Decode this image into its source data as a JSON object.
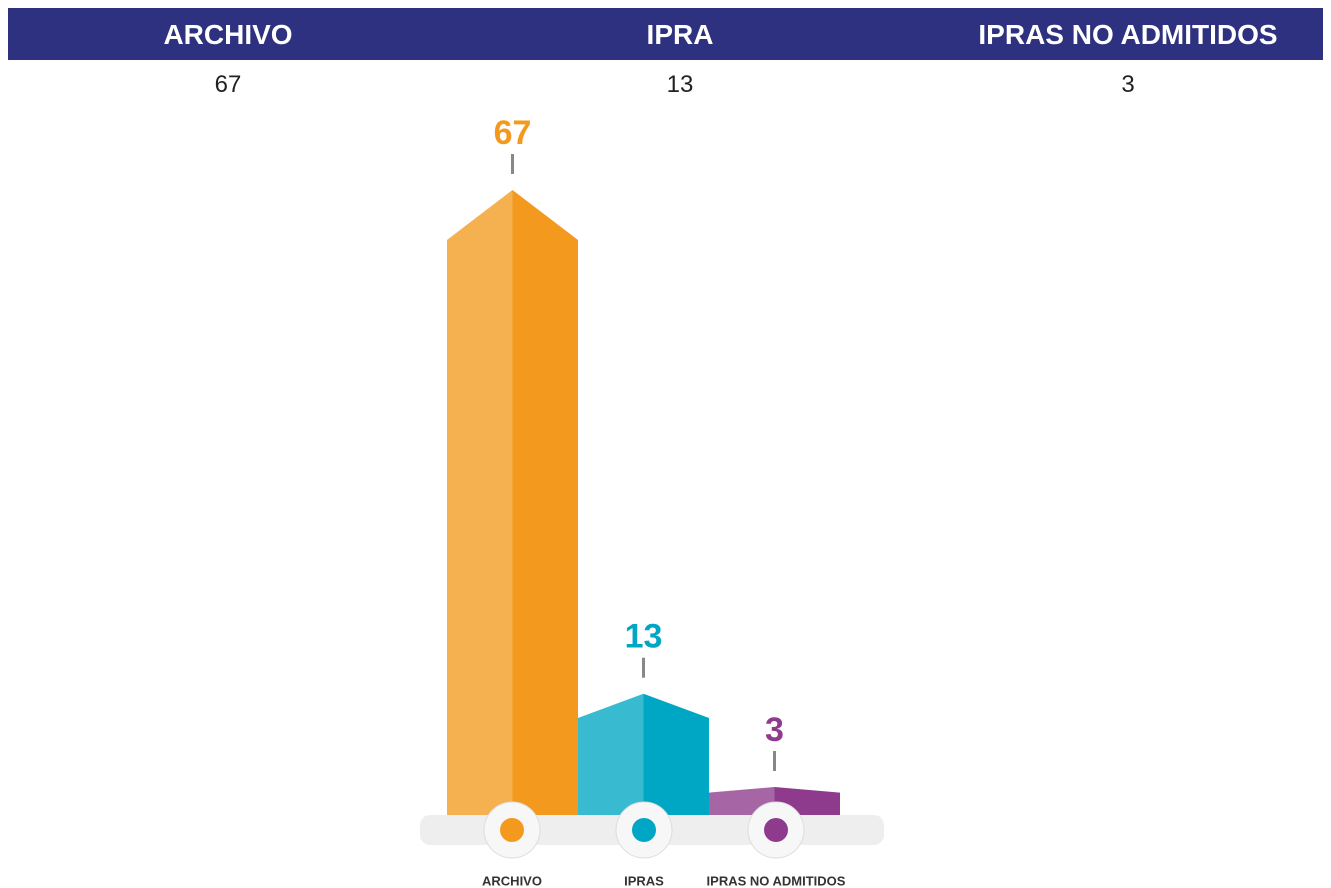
{
  "table": {
    "headers": [
      "ARCHIVO",
      "IPRA",
      "IPRAS NO ADMITIDOS"
    ],
    "rows": [
      [
        67,
        13,
        3
      ]
    ]
  },
  "chart_data": {
    "type": "bar",
    "categories": [
      "ARCHIVO",
      "IPRAS",
      "IPRAS NO ADMITIDOS"
    ],
    "values": [
      67,
      13,
      3
    ],
    "colors": [
      "#f39a1e",
      "#00a7c4",
      "#8e3b8e"
    ]
  }
}
